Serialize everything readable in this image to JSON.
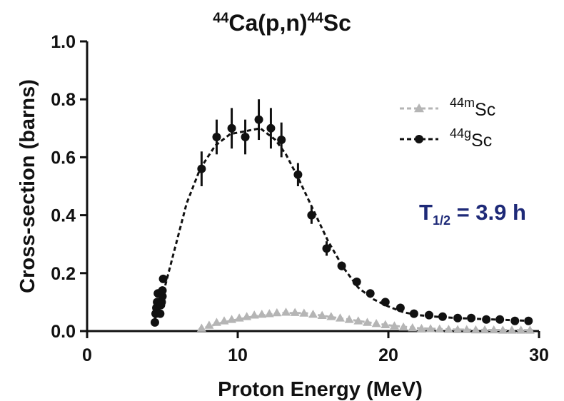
{
  "chart_data": {
    "type": "scatter",
    "title": {
      "pre_sup": "44",
      "middle": "Ca(p,n)",
      "post_sup": "44",
      "end": "Sc"
    },
    "xlabel": "Proton  Energy  (MeV)",
    "ylabel": "Cross-section  (barns)",
    "xlim": [
      0,
      30
    ],
    "ylim": [
      0,
      1.0
    ],
    "xticks": [
      "0",
      "10",
      "20",
      "30"
    ],
    "yticks": [
      "0.0",
      "0.2",
      "0.4",
      "0.6",
      "0.8",
      "1.0"
    ],
    "grid": false,
    "legend_position": "top-right",
    "annotation": {
      "symbol": "T",
      "subscript": "1/2",
      "value": " = 3.9 h"
    },
    "series": [
      {
        "name": "44mSc",
        "name_sup": "44m",
        "name_base": "Sc",
        "color": "#b5b5b5",
        "marker": "triangle",
        "line": "dashed",
        "points": [
          [
            7.6,
            0.01
          ],
          [
            8.1,
            0.02
          ],
          [
            8.6,
            0.03
          ],
          [
            9.1,
            0.035
          ],
          [
            9.6,
            0.04
          ],
          [
            10.1,
            0.045
          ],
          [
            10.6,
            0.05
          ],
          [
            11.1,
            0.055
          ],
          [
            11.6,
            0.058
          ],
          [
            12.1,
            0.06
          ],
          [
            12.6,
            0.063
          ],
          [
            13.2,
            0.065
          ],
          [
            13.8,
            0.064
          ],
          [
            14.4,
            0.062
          ],
          [
            15.0,
            0.058
          ],
          [
            15.6,
            0.054
          ],
          [
            16.2,
            0.05
          ],
          [
            16.8,
            0.045
          ],
          [
            17.4,
            0.04
          ],
          [
            18.0,
            0.035
          ],
          [
            18.6,
            0.03
          ],
          [
            19.2,
            0.026
          ],
          [
            19.8,
            0.022
          ],
          [
            20.4,
            0.018
          ],
          [
            21.0,
            0.014
          ],
          [
            21.6,
            0.011
          ],
          [
            22.2,
            0.009
          ],
          [
            22.8,
            0.008
          ],
          [
            23.4,
            0.007
          ],
          [
            24.0,
            0.006
          ],
          [
            24.6,
            0.005
          ],
          [
            25.2,
            0.005
          ],
          [
            25.8,
            0.004
          ],
          [
            26.4,
            0.004
          ],
          [
            27.0,
            0.004
          ],
          [
            27.6,
            0.003
          ],
          [
            28.2,
            0.003
          ],
          [
            28.8,
            0.003
          ],
          [
            29.4,
            0.003
          ]
        ],
        "fit": [
          [
            7.4,
            0.005
          ],
          [
            9,
            0.03
          ],
          [
            11,
            0.05
          ],
          [
            13,
            0.062
          ],
          [
            14.5,
            0.062
          ],
          [
            16,
            0.05
          ],
          [
            18,
            0.035
          ],
          [
            20,
            0.02
          ],
          [
            22,
            0.01
          ],
          [
            24,
            0.006
          ],
          [
            26,
            0.004
          ],
          [
            29.6,
            0.003
          ]
        ]
      },
      {
        "name": "44gSc",
        "name_sup": "44g",
        "name_base": "Sc",
        "color": "#111111",
        "marker": "circle",
        "line": "dashed",
        "points": [
          [
            4.5,
            0.03,
            0
          ],
          [
            4.55,
            0.06,
            0
          ],
          [
            4.6,
            0.08,
            0
          ],
          [
            4.65,
            0.1,
            0
          ],
          [
            4.7,
            0.13,
            0
          ],
          [
            4.85,
            0.06,
            0
          ],
          [
            4.9,
            0.09,
            0
          ],
          [
            4.95,
            0.1,
            0
          ],
          [
            5.0,
            0.12,
            0
          ],
          [
            5.0,
            0.14,
            0
          ],
          [
            5.05,
            0.18,
            0
          ],
          [
            7.6,
            0.56,
            0.06
          ],
          [
            8.6,
            0.67,
            0.06
          ],
          [
            9.6,
            0.7,
            0.07
          ],
          [
            10.5,
            0.67,
            0.06
          ],
          [
            11.4,
            0.73,
            0.07
          ],
          [
            12.2,
            0.7,
            0.07
          ],
          [
            12.9,
            0.66,
            0.06
          ],
          [
            14.0,
            0.54,
            0.04
          ],
          [
            14.9,
            0.4,
            0.03
          ],
          [
            15.9,
            0.285,
            0.025
          ],
          [
            16.9,
            0.225,
            0.015
          ],
          [
            17.9,
            0.17,
            0.01
          ],
          [
            18.8,
            0.13,
            0
          ],
          [
            19.8,
            0.1,
            0
          ],
          [
            20.8,
            0.08,
            0
          ],
          [
            21.7,
            0.06,
            0
          ],
          [
            22.7,
            0.055,
            0
          ],
          [
            23.6,
            0.05,
            0
          ],
          [
            24.6,
            0.045,
            0
          ],
          [
            25.5,
            0.045,
            0
          ],
          [
            26.5,
            0.04,
            0
          ],
          [
            27.4,
            0.04,
            0
          ],
          [
            28.4,
            0.035,
            0
          ],
          [
            29.3,
            0.035,
            0
          ]
        ],
        "fit": [
          [
            4.5,
            0.04
          ],
          [
            5.0,
            0.12
          ],
          [
            5.8,
            0.28
          ],
          [
            6.6,
            0.44
          ],
          [
            7.5,
            0.56
          ],
          [
            8.5,
            0.64
          ],
          [
            9.5,
            0.68
          ],
          [
            10.5,
            0.69
          ],
          [
            11.5,
            0.7
          ],
          [
            12.5,
            0.66
          ],
          [
            13.2,
            0.61
          ],
          [
            14.0,
            0.53
          ],
          [
            15.0,
            0.42
          ],
          [
            16.0,
            0.31
          ],
          [
            17.0,
            0.22
          ],
          [
            18.0,
            0.15
          ],
          [
            19.0,
            0.11
          ],
          [
            20.0,
            0.085
          ],
          [
            21.0,
            0.065
          ],
          [
            22.0,
            0.055
          ],
          [
            23.5,
            0.048
          ],
          [
            25.0,
            0.044
          ],
          [
            27.0,
            0.04
          ],
          [
            29.5,
            0.035
          ]
        ]
      }
    ]
  }
}
